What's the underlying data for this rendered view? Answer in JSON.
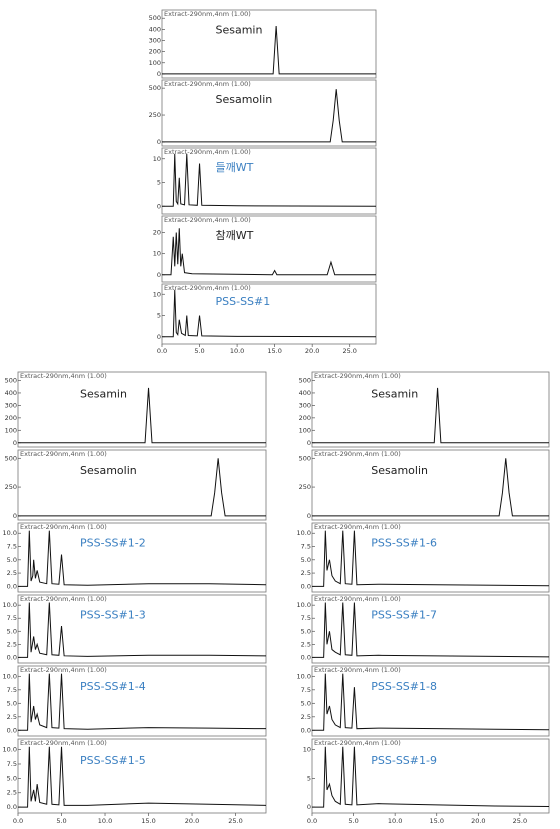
{
  "chart_data": [
    {
      "type": "line",
      "xlim": [
        0,
        28.5
      ],
      "xticks": [
        {
          "value": 0,
          "label": "0.0"
        },
        {
          "value": 5,
          "label": "5.0"
        },
        {
          "value": 10,
          "label": "10.0"
        },
        {
          "value": 15,
          "label": "15.0"
        },
        {
          "value": 20,
          "label": "20.0"
        },
        {
          "value": 25,
          "label": "25.0"
        }
      ],
      "panels": [
        {
          "header": "Extract-290nm,4nm (1.00)",
          "label": "Sesamin",
          "label_color": "#222222",
          "color": "#111111",
          "ylim": [
            -10,
            520
          ],
          "yticks": [
            0,
            100,
            200,
            300,
            400,
            500
          ],
          "x": [
            0,
            14.8,
            15.2,
            15.6,
            28.5
          ],
          "values": [
            0,
            0,
            430,
            0,
            0
          ]
        },
        {
          "header": "Extract-290nm,4nm (1.00)",
          "label": "Sesamolin",
          "label_color": "#222222",
          "color": "#111111",
          "ylim": [
            -10,
            520
          ],
          "yticks": [
            0,
            250,
            500
          ],
          "x": [
            0,
            22.4,
            22.8,
            23.2,
            23.6,
            24.0,
            28.5
          ],
          "values": [
            0,
            0,
            200,
            490,
            200,
            0,
            0
          ]
        },
        {
          "header": "Extract-290nm,4nm (1.00)",
          "label": "들깨WT",
          "label_color": "#3a7fc1",
          "color": "#111111",
          "ylim": [
            -1,
            11
          ],
          "yticks": [
            0,
            5,
            10
          ],
          "x": [
            0,
            1.5,
            1.7,
            1.9,
            2.1,
            2.3,
            2.5,
            3.0,
            3.3,
            3.6,
            4.7,
            5.0,
            5.3,
            10,
            28.5
          ],
          "values": [
            0,
            0,
            11,
            1,
            0.5,
            6,
            0.5,
            0.3,
            11,
            0.3,
            0.2,
            9,
            0.2,
            0.1,
            0
          ]
        },
        {
          "header": "Extract-290nm,4nm (1.00)",
          "label": "참깨WT",
          "label_color": "#222222",
          "color": "#111111",
          "ylim": [
            -2,
            25
          ],
          "yticks": [
            0,
            10,
            20
          ],
          "x": [
            0,
            1.2,
            1.5,
            1.7,
            1.9,
            2.1,
            2.3,
            2.5,
            2.7,
            3.0,
            4,
            14.7,
            15.0,
            15.3,
            22.0,
            22.5,
            23.0,
            28.5
          ],
          "values": [
            0,
            0,
            18,
            4,
            20,
            5,
            22,
            4,
            10,
            1,
            0.5,
            0,
            2,
            0,
            0,
            6,
            0,
            0
          ]
        },
        {
          "header": "Extract-290nm,4nm (1.00)",
          "label": "PSS-SS#1",
          "label_color": "#3a7fc1",
          "color": "#111111",
          "ylim": [
            -1,
            11
          ],
          "yticks": [
            0,
            5,
            10
          ],
          "x": [
            0,
            1.5,
            1.7,
            1.9,
            2.1,
            2.3,
            2.6,
            3.1,
            3.3,
            3.5,
            4.7,
            5.0,
            5.3,
            10,
            28.5
          ],
          "values": [
            0,
            0,
            11,
            1,
            0.5,
            4,
            0.8,
            0.3,
            5,
            0.3,
            0.2,
            5,
            0.2,
            0.1,
            0
          ]
        }
      ]
    },
    {
      "type": "line",
      "xlim": [
        0,
        28.5
      ],
      "xticks": [
        {
          "value": 0,
          "label": "0.0"
        },
        {
          "value": 5,
          "label": "5.0"
        },
        {
          "value": 10,
          "label": "10.0"
        },
        {
          "value": 15,
          "label": "15.0"
        },
        {
          "value": 20,
          "label": "20.0"
        },
        {
          "value": 25,
          "label": "25.0"
        }
      ],
      "panels": [
        {
          "header": "Extract-290nm,4nm (1.00)",
          "label": "Sesamin",
          "label_color": "#222222",
          "color": "#111111",
          "ylim": [
            -10,
            520
          ],
          "yticks": [
            0,
            100,
            200,
            300,
            400,
            500
          ],
          "x": [
            0,
            14.6,
            15.0,
            15.4,
            28.5
          ],
          "values": [
            0,
            0,
            440,
            0,
            0
          ]
        },
        {
          "header": "Extract-290nm,4nm (1.00)",
          "label": "Sesamolin",
          "label_color": "#222222",
          "color": "#111111",
          "ylim": [
            -10,
            520
          ],
          "yticks": [
            0,
            250,
            500
          ],
          "x": [
            0,
            22.2,
            22.6,
            23.0,
            23.4,
            23.8,
            28.5
          ],
          "values": [
            0,
            0,
            200,
            500,
            200,
            0,
            0
          ]
        },
        {
          "header": "Extract-290nm,4nm (1.00)",
          "label": "PSS-SS#1-2",
          "label_color": "#3a7fc1",
          "color": "#111111",
          "ylim": [
            -0.5,
            10.8
          ],
          "yticks": [
            {
              "value": 0,
              "label": "0.0"
            },
            2.5,
            {
              "value": 5,
              "label": "5.0"
            },
            7.5,
            {
              "value": 10,
              "label": "10.0"
            }
          ],
          "x": [
            0,
            1.1,
            1.3,
            1.5,
            1.7,
            1.8,
            2.0,
            2.2,
            2.5,
            3.3,
            3.6,
            3.9,
            4.7,
            5.0,
            5.3,
            8,
            15,
            22,
            28.5
          ],
          "values": [
            0,
            0,
            10.5,
            1,
            2,
            5,
            1.5,
            3,
            0.8,
            0.5,
            10.5,
            0.5,
            0.4,
            6,
            0.3,
            0.2,
            0.5,
            0.5,
            0.3
          ]
        },
        {
          "header": "Extract-290nm,4nm (1.00)",
          "label": "PSS-SS#1-3",
          "label_color": "#3a7fc1",
          "color": "#111111",
          "ylim": [
            -0.5,
            10.8
          ],
          "yticks": [
            {
              "value": 0,
              "label": "0.0"
            },
            2.5,
            {
              "value": 5,
              "label": "5.0"
            },
            7.5,
            {
              "value": 10,
              "label": "10.0"
            }
          ],
          "x": [
            0,
            1.1,
            1.3,
            1.5,
            1.8,
            2.0,
            2.2,
            2.5,
            3.3,
            3.6,
            3.9,
            4.7,
            5.0,
            5.3,
            8,
            15,
            22,
            28.5
          ],
          "values": [
            0,
            0,
            10.5,
            1,
            4,
            1.5,
            2.5,
            0.8,
            0.5,
            10.5,
            0.5,
            0.4,
            6,
            0.3,
            0.2,
            0.4,
            0.4,
            0.3
          ]
        },
        {
          "header": "Extract-290nm,4nm (1.00)",
          "label": "PSS-SS#1-4",
          "label_color": "#3a7fc1",
          "color": "#111111",
          "ylim": [
            -0.5,
            10.8
          ],
          "yticks": [
            {
              "value": 0,
              "label": "0.0"
            },
            2.5,
            {
              "value": 5,
              "label": "5.0"
            },
            7.5,
            {
              "value": 10,
              "label": "10.0"
            }
          ],
          "x": [
            0,
            1.1,
            1.3,
            1.5,
            1.8,
            2.0,
            2.2,
            2.5,
            3.3,
            3.6,
            3.9,
            4.7,
            5.0,
            5.3,
            8,
            15,
            22,
            28.5
          ],
          "values": [
            0,
            0,
            10.5,
            1.5,
            4.5,
            2,
            3,
            1,
            0.5,
            10.5,
            0.5,
            0.4,
            10.5,
            0.3,
            0.2,
            0.5,
            0.4,
            0.3
          ]
        },
        {
          "header": "Extract-290nm,4nm (1.00)",
          "label": "PSS-SS#1-5",
          "label_color": "#3a7fc1",
          "color": "#111111",
          "ylim": [
            -0.5,
            10.8
          ],
          "yticks": [
            {
              "value": 0,
              "label": "0.0"
            },
            2.5,
            {
              "value": 5,
              "label": "5.0"
            },
            7.5,
            {
              "value": 10,
              "label": "10.0"
            }
          ],
          "x": [
            0,
            1.1,
            1.3,
            1.5,
            1.8,
            2.0,
            2.2,
            2.5,
            3.3,
            3.6,
            3.9,
            4.7,
            5.0,
            5.3,
            8,
            15,
            22,
            28.5
          ],
          "values": [
            0,
            0,
            10.5,
            1,
            3,
            1,
            4,
            0.8,
            0.5,
            10.5,
            0.5,
            0.4,
            10.5,
            0.3,
            0.3,
            0.7,
            0.5,
            0.3
          ]
        }
      ]
    },
    {
      "type": "line",
      "xlim": [
        0,
        28.5
      ],
      "xticks": [
        {
          "value": 0,
          "label": "0.0"
        },
        {
          "value": 5,
          "label": "5.0"
        },
        {
          "value": 10,
          "label": "10.0"
        },
        {
          "value": 15,
          "label": "15.0"
        },
        {
          "value": 20,
          "label": "20.0"
        },
        {
          "value": 25,
          "label": "25.0"
        }
      ],
      "panels": [
        {
          "header": "Extract-290nm,4nm (1.00)",
          "label": "Sesamin",
          "label_color": "#222222",
          "color": "#111111",
          "ylim": [
            -10,
            520
          ],
          "yticks": [
            0,
            100,
            200,
            300,
            400,
            500
          ],
          "x": [
            0,
            14.7,
            15.1,
            15.5,
            28.5
          ],
          "values": [
            0,
            0,
            440,
            0,
            0
          ]
        },
        {
          "header": "Extract-290nm,4nm (1.00)",
          "label": "Sesamolin",
          "label_color": "#222222",
          "color": "#111111",
          "ylim": [
            -10,
            520
          ],
          "yticks": [
            0,
            250,
            500
          ],
          "x": [
            0,
            22.5,
            22.9,
            23.3,
            23.7,
            24.1,
            28.5
          ],
          "values": [
            0,
            0,
            200,
            500,
            200,
            0,
            0
          ]
        },
        {
          "header": "Extract-290nm,4nm (1.00)",
          "label": "PSS-SS#1-6",
          "label_color": "#3a7fc1",
          "color": "#111111",
          "ylim": [
            -0.5,
            10.8
          ],
          "yticks": [
            {
              "value": 0,
              "label": "0.0"
            },
            2.5,
            {
              "value": 5,
              "label": "5.0"
            },
            7.5,
            {
              "value": 10,
              "label": "10.0"
            }
          ],
          "x": [
            0,
            1.4,
            1.6,
            1.8,
            2.1,
            2.4,
            2.8,
            3.4,
            3.7,
            4.0,
            4.8,
            5.1,
            5.4,
            8,
            15,
            22,
            28.5
          ],
          "values": [
            0,
            0,
            10.5,
            3,
            5,
            2,
            1,
            0.5,
            10.5,
            0.5,
            0.4,
            10.5,
            0.3,
            0.4,
            0.3,
            0.2,
            0.1
          ]
        },
        {
          "header": "Extract-290nm,4nm (1.00)",
          "label": "PSS-SS#1-7",
          "label_color": "#3a7fc1",
          "color": "#111111",
          "ylim": [
            -0.5,
            10.8
          ],
          "yticks": [
            {
              "value": 0,
              "label": "0.0"
            },
            2.5,
            {
              "value": 5,
              "label": "5.0"
            },
            7.5,
            {
              "value": 10,
              "label": "10.0"
            }
          ],
          "x": [
            0,
            1.4,
            1.6,
            1.8,
            2.1,
            2.4,
            2.8,
            3.4,
            3.7,
            4.0,
            4.8,
            5.1,
            5.4,
            8,
            15,
            22,
            28.5
          ],
          "values": [
            0,
            0,
            10.5,
            2.5,
            5,
            1.5,
            1,
            0.5,
            10.5,
            0.5,
            0.4,
            10.5,
            0.3,
            0.4,
            0.3,
            0.2,
            0.1
          ]
        },
        {
          "header": "Extract-290nm,4nm (1.00)",
          "label": "PSS-SS#1-8",
          "label_color": "#3a7fc1",
          "color": "#111111",
          "ylim": [
            -0.5,
            10.8
          ],
          "yticks": [
            {
              "value": 0,
              "label": "0.0"
            },
            2.5,
            {
              "value": 5,
              "label": "5.0"
            },
            7.5,
            {
              "value": 10,
              "label": "10.0"
            }
          ],
          "x": [
            0,
            1.4,
            1.6,
            1.8,
            2.1,
            2.4,
            2.8,
            3.4,
            3.7,
            4.0,
            4.8,
            5.1,
            5.4,
            8,
            15,
            22,
            28.5
          ],
          "values": [
            0,
            0,
            10.5,
            3,
            4.5,
            2,
            1,
            0.5,
            10.5,
            0.5,
            0.4,
            8,
            0.3,
            0.4,
            0.3,
            0.2,
            0.1
          ]
        },
        {
          "header": "Extract-290nm,4nm (1.00)",
          "label": "PSS-SS#1-9",
          "label_color": "#3a7fc1",
          "color": "#111111",
          "ylim": [
            -0.5,
            10.8
          ],
          "yticks": [
            0,
            5,
            10
          ],
          "x": [
            0,
            1.4,
            1.6,
            1.8,
            2.1,
            2.4,
            2.8,
            3.4,
            3.7,
            4.0,
            4.8,
            5.1,
            5.4,
            8,
            15,
            22,
            28.5
          ],
          "values": [
            0,
            0,
            10.5,
            3,
            4,
            2,
            1,
            0.5,
            10.5,
            0.5,
            0.4,
            10.5,
            0.4,
            0.6,
            0.4,
            0.2,
            0.1
          ]
        }
      ]
    }
  ]
}
